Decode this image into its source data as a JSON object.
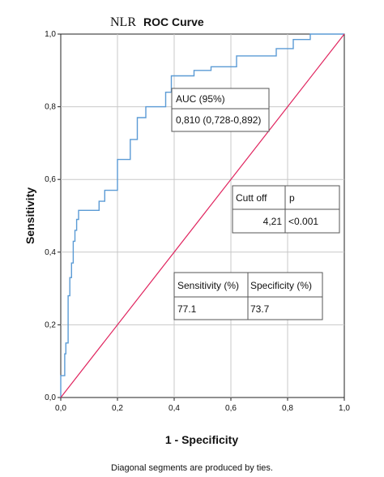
{
  "chart_data": {
    "type": "line",
    "title_prefix": "NLR",
    "title": "ROC Curve",
    "xlabel": "1 - Specificity",
    "ylabel": "Sensitivity",
    "xlim": [
      0,
      1
    ],
    "ylim": [
      0,
      1
    ],
    "x_ticks": [
      "0,0",
      "0,2",
      "0,4",
      "0,6",
      "0,8",
      "1,0"
    ],
    "y_ticks": [
      "0,0",
      "0,2",
      "0,4",
      "0,6",
      "0,8",
      "1,0"
    ],
    "grid": true,
    "footnote": "Diagonal segments are produced by ties.",
    "colors": {
      "roc": "#5b9bd5",
      "reference": "#e0245e",
      "grid": "#c8c8c8",
      "axis": "#222222"
    },
    "series": [
      {
        "kind": "roc",
        "points": [
          [
            0,
            0
          ],
          [
            0,
            0.06
          ],
          [
            0.014,
            0.06
          ],
          [
            0.014,
            0.12
          ],
          [
            0.018,
            0.12
          ],
          [
            0.018,
            0.15
          ],
          [
            0.026,
            0.15
          ],
          [
            0.026,
            0.28
          ],
          [
            0.032,
            0.28
          ],
          [
            0.032,
            0.33
          ],
          [
            0.038,
            0.33
          ],
          [
            0.038,
            0.37
          ],
          [
            0.044,
            0.37
          ],
          [
            0.044,
            0.43
          ],
          [
            0.05,
            0.43
          ],
          [
            0.05,
            0.46
          ],
          [
            0.056,
            0.46
          ],
          [
            0.056,
            0.49
          ],
          [
            0.063,
            0.49
          ],
          [
            0.063,
            0.515
          ],
          [
            0.135,
            0.515
          ],
          [
            0.135,
            0.54
          ],
          [
            0.155,
            0.54
          ],
          [
            0.155,
            0.57
          ],
          [
            0.2,
            0.57
          ],
          [
            0.2,
            0.655
          ],
          [
            0.245,
            0.655
          ],
          [
            0.245,
            0.71
          ],
          [
            0.27,
            0.71
          ],
          [
            0.27,
            0.77
          ],
          [
            0.3,
            0.77
          ],
          [
            0.3,
            0.8
          ],
          [
            0.37,
            0.8
          ],
          [
            0.37,
            0.84
          ],
          [
            0.39,
            0.84
          ],
          [
            0.39,
            0.885
          ],
          [
            0.47,
            0.885
          ],
          [
            0.47,
            0.9
          ],
          [
            0.53,
            0.9
          ],
          [
            0.53,
            0.91
          ],
          [
            0.62,
            0.91
          ],
          [
            0.62,
            0.94
          ],
          [
            0.76,
            0.94
          ],
          [
            0.76,
            0.96
          ],
          [
            0.82,
            0.96
          ],
          [
            0.82,
            0.985
          ],
          [
            0.88,
            0.985
          ],
          [
            0.88,
            1
          ],
          [
            1,
            1
          ]
        ]
      },
      {
        "kind": "reference",
        "points": [
          [
            0,
            0
          ],
          [
            1,
            1
          ]
        ]
      }
    ],
    "annotations": {
      "auc": {
        "header": "AUC (95%)",
        "value": "0,810 (0,728-0,892)"
      },
      "cutoff": {
        "headers": [
          "Cutt off",
          "p"
        ],
        "values": [
          "4,21",
          "<0.001"
        ]
      },
      "sens_spec": {
        "headers": [
          "Sensitivity (%)",
          "Specificity (%)"
        ],
        "values": [
          "77.1",
          "73.7"
        ]
      }
    }
  }
}
